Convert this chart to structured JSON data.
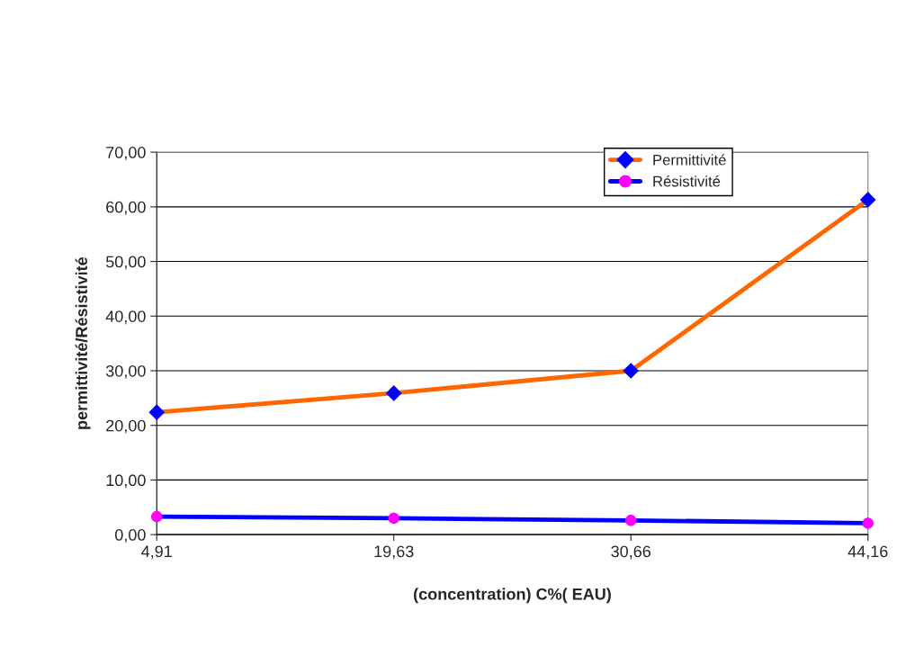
{
  "chart_data": {
    "type": "line",
    "xlabel": "(concentration) C%( EAU)",
    "ylabel": "permittivité/Résistivité",
    "categories": [
      "4,91",
      "19,63",
      "30,66",
      "44,16"
    ],
    "series": [
      {
        "name": "Permittivité",
        "color": "#ff6600",
        "colors": [
          "#0000ff",
          "#0000ff",
          "#0000ff",
          "#0000ff"
        ],
        "marker": "diamond",
        "values": [
          22.4,
          25.9,
          30.0,
          61.3
        ]
      },
      {
        "name": "Résistivité",
        "color": "#0000ff",
        "colors": [
          "#ff00ff",
          "#ff00ff",
          "#ff00ff",
          "#ff00ff"
        ],
        "marker": "circle",
        "values": [
          3.3,
          3.0,
          2.6,
          2.1
        ]
      }
    ],
    "ylim": [
      0,
      70
    ],
    "yticks": [
      {
        "value": 0,
        "label": "0,00"
      },
      {
        "value": 10,
        "label": "10,00"
      },
      {
        "value": 20,
        "label": "20,00"
      },
      {
        "value": 30,
        "label": "30,00"
      },
      {
        "value": 40,
        "label": "40,00"
      },
      {
        "value": 50,
        "label": "50,00"
      },
      {
        "value": 60,
        "label": "60,00"
      },
      {
        "value": 70,
        "label": "70,00"
      }
    ],
    "grid": "y",
    "legend": "top right"
  }
}
